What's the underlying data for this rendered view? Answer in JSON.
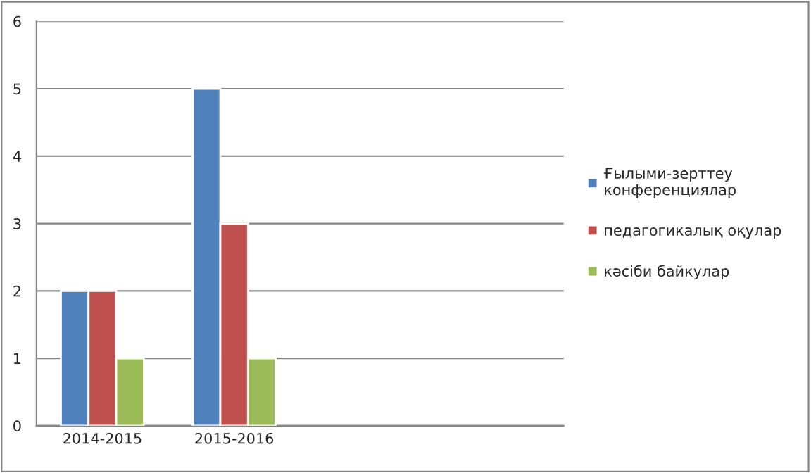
{
  "chart_data": {
    "type": "bar",
    "categories": [
      "2014-2015",
      "2015-2016",
      null,
      null
    ],
    "series": [
      {
        "name": "Ғылыми-зерттеу\nконференциялар",
        "color": "#4f81bd",
        "values": [
          2,
          5,
          null,
          null
        ]
      },
      {
        "name": "педагогикалық оқулар",
        "color": "#c0504d",
        "values": [
          2,
          3,
          null,
          null
        ]
      },
      {
        "name": "кәсіби байкулар",
        "color": "#9bbb59",
        "values": [
          1,
          1,
          null,
          null
        ]
      }
    ],
    "ylim": [
      0,
      6
    ],
    "yticks": [
      0,
      1,
      2,
      3,
      4,
      5,
      6
    ],
    "grid": "y",
    "legend": "right"
  }
}
